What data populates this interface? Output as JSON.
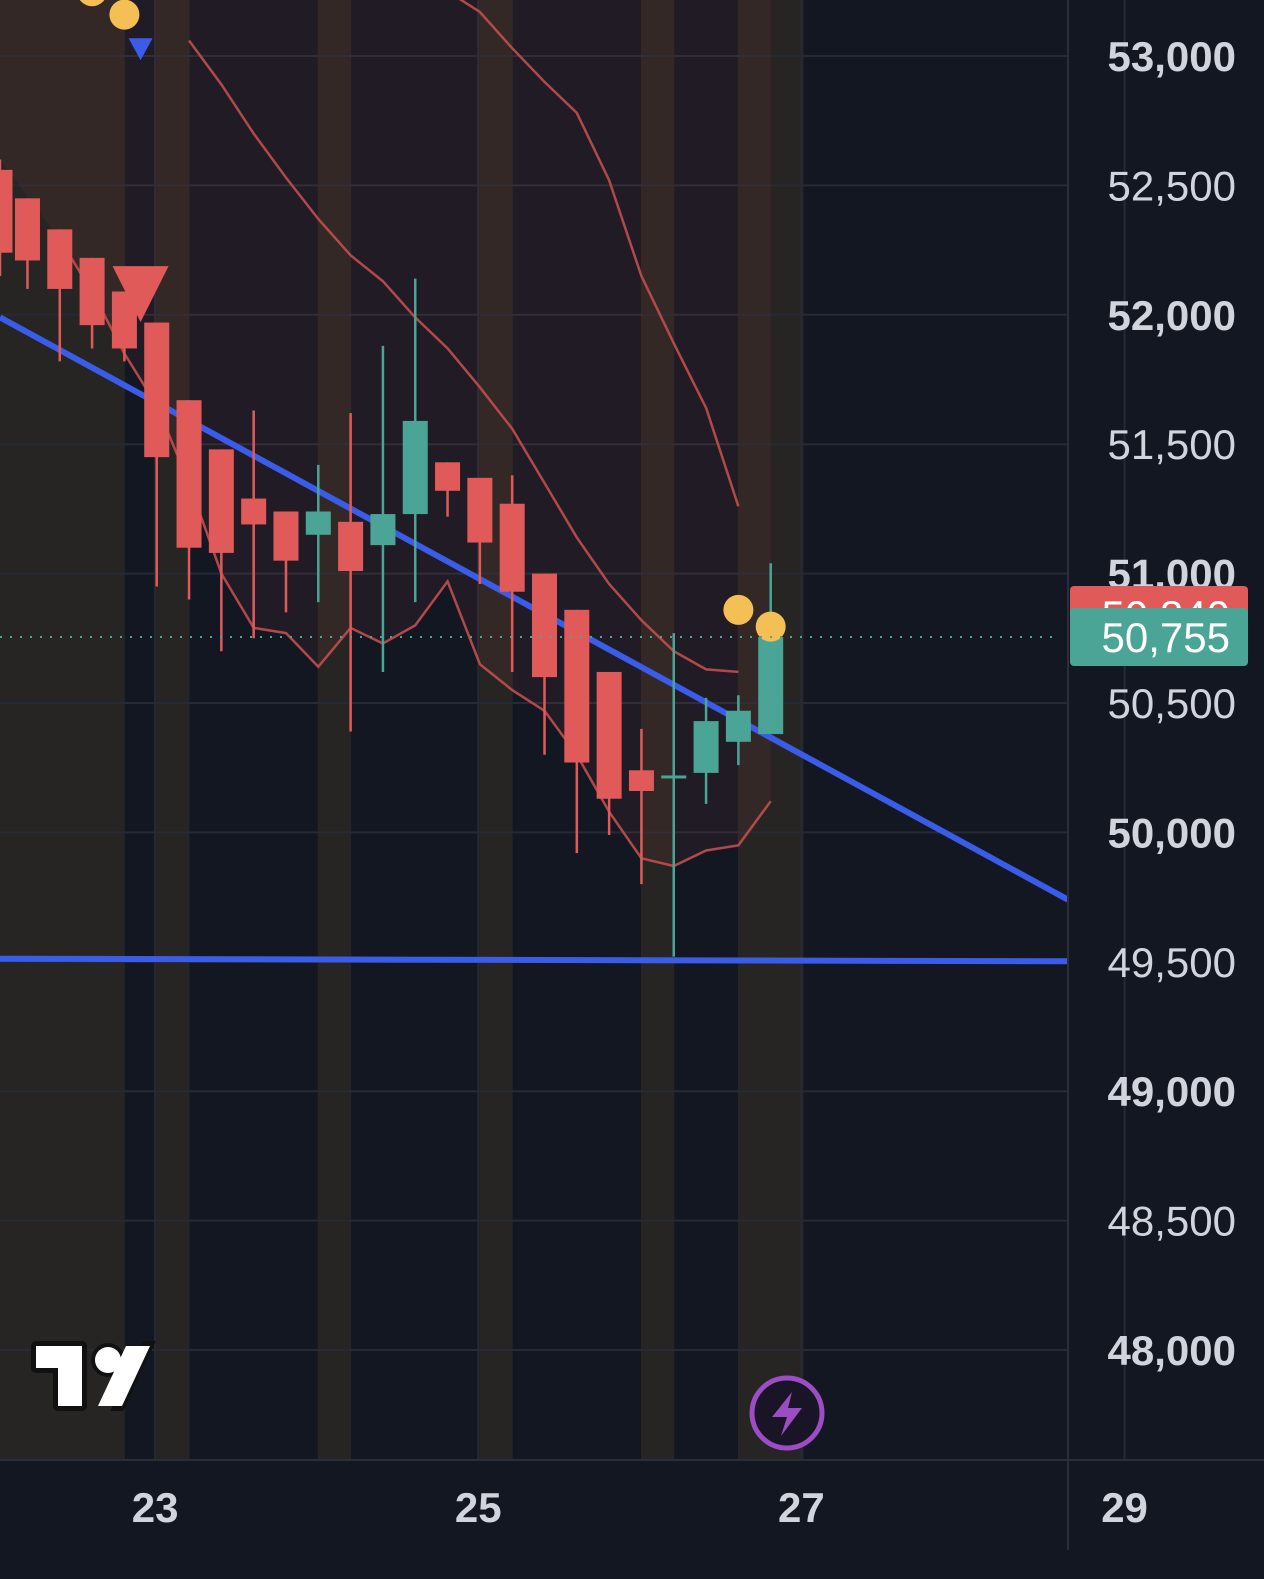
{
  "chart_data": {
    "type": "candlestick",
    "y_axis": {
      "position": "right",
      "ylim": [
        47600,
        53340
      ],
      "ticks": [
        {
          "value": 53000,
          "label": "53,000",
          "bold": true
        },
        {
          "value": 52500,
          "label": "52,500",
          "bold": false
        },
        {
          "value": 52000,
          "label": "52,000",
          "bold": true
        },
        {
          "value": 51500,
          "label": "51,500",
          "bold": false
        },
        {
          "value": 51000,
          "label": "51,000",
          "bold": true
        },
        {
          "value": 50500,
          "label": "50,500",
          "bold": false
        },
        {
          "value": 50000,
          "label": "50,000",
          "bold": true
        },
        {
          "value": 49500,
          "label": "49,500",
          "bold": false
        },
        {
          "value": 49000,
          "label": "49,000",
          "bold": true
        },
        {
          "value": 48500,
          "label": "48,500",
          "bold": false
        },
        {
          "value": 48000,
          "label": "48,000",
          "bold": true
        }
      ]
    },
    "x_axis": {
      "xlim": [
        22.04,
        28.65
      ],
      "ticks": [
        {
          "value": 23,
          "label": "23"
        },
        {
          "value": 25,
          "label": "25"
        },
        {
          "value": 27,
          "label": "27"
        },
        {
          "value": 29,
          "label": "29"
        }
      ]
    },
    "grid": true,
    "candles": [
      {
        "t": 22.04,
        "o": 52560,
        "h": 52600,
        "l": 52150,
        "c": 52240
      },
      {
        "t": 22.21,
        "o": 52450,
        "h": 52450,
        "l": 52100,
        "c": 52210
      },
      {
        "t": 22.41,
        "o": 52330,
        "h": 52330,
        "l": 51820,
        "c": 52100
      },
      {
        "t": 22.61,
        "o": 52220,
        "h": 52220,
        "l": 51870,
        "c": 51960
      },
      {
        "t": 22.81,
        "o": 52090,
        "h": 52090,
        "l": 51820,
        "c": 51870
      },
      {
        "t": 23.01,
        "o": 51970,
        "h": 51970,
        "l": 50950,
        "c": 51450
      },
      {
        "t": 23.21,
        "o": 51670,
        "h": 51670,
        "l": 50900,
        "c": 51100
      },
      {
        "t": 23.41,
        "o": 51480,
        "h": 51480,
        "l": 50700,
        "c": 51080
      },
      {
        "t": 23.61,
        "o": 51290,
        "h": 51630,
        "l": 50750,
        "c": 51190
      },
      {
        "t": 23.81,
        "o": 51240,
        "h": 51240,
        "l": 50850,
        "c": 51050
      },
      {
        "t": 24.01,
        "o": 51150,
        "h": 51420,
        "l": 50890,
        "c": 51240
      },
      {
        "t": 24.21,
        "o": 51200,
        "h": 51620,
        "l": 50390,
        "c": 51010
      },
      {
        "t": 24.41,
        "o": 51110,
        "h": 51880,
        "l": 50620,
        "c": 51230
      },
      {
        "t": 24.61,
        "o": 51230,
        "h": 52140,
        "l": 50890,
        "c": 51590
      },
      {
        "t": 24.81,
        "o": 51430,
        "h": 51430,
        "l": 51220,
        "c": 51320
      },
      {
        "t": 25.01,
        "o": 51370,
        "h": 51370,
        "l": 50960,
        "c": 51120
      },
      {
        "t": 25.21,
        "o": 51270,
        "h": 51380,
        "l": 50620,
        "c": 50930
      },
      {
        "t": 25.41,
        "o": 51000,
        "h": 51000,
        "l": 50300,
        "c": 50600
      },
      {
        "t": 25.61,
        "o": 50860,
        "h": 50860,
        "l": 49920,
        "c": 50270
      },
      {
        "t": 25.81,
        "o": 50620,
        "h": 50620,
        "l": 49990,
        "c": 50130
      },
      {
        "t": 26.01,
        "o": 50240,
        "h": 50400,
        "l": 49800,
        "c": 50160
      },
      {
        "t": 26.21,
        "o": 50210,
        "h": 50770,
        "l": 49520,
        "c": 50220
      },
      {
        "t": 26.41,
        "o": 50230,
        "h": 50520,
        "l": 50110,
        "c": 50430
      },
      {
        "t": 26.61,
        "o": 50350,
        "h": 50530,
        "l": 50260,
        "c": 50470
      },
      {
        "t": 26.81,
        "o": 50380,
        "h": 51040,
        "l": 50380,
        "c": 50755
      }
    ],
    "current_price": 50755,
    "price_labels": [
      {
        "label": "50,840",
        "value": 50840,
        "color": "#E15A5A"
      },
      {
        "label": "50,755",
        "value": 50755,
        "color": "#4BA596"
      }
    ],
    "overlays": {
      "upper_band": {
        "color": "#B84C4C",
        "points": [
          [
            23.21,
            53060
          ],
          [
            23.41,
            52890
          ],
          [
            23.61,
            52700
          ],
          [
            23.81,
            52530
          ],
          [
            24.01,
            52370
          ],
          [
            24.21,
            52230
          ],
          [
            24.41,
            52130
          ],
          [
            24.61,
            51990
          ],
          [
            24.81,
            51870
          ],
          [
            25.01,
            51720
          ],
          [
            25.21,
            51560
          ],
          [
            25.41,
            51350
          ],
          [
            25.61,
            51140
          ],
          [
            25.81,
            50960
          ],
          [
            26.01,
            50820
          ],
          [
            26.21,
            50700
          ],
          [
            26.41,
            50630
          ],
          [
            26.61,
            50620
          ]
        ]
      },
      "upper_band_2": {
        "color": "#B84C4C",
        "points": [
          [
            24.69,
            53340
          ],
          [
            24.81,
            53250
          ],
          [
            25.01,
            53170
          ],
          [
            25.21,
            53030
          ],
          [
            25.41,
            52900
          ],
          [
            25.61,
            52780
          ],
          [
            25.81,
            52520
          ],
          [
            26.01,
            52150
          ],
          [
            26.21,
            51890
          ],
          [
            26.41,
            51640
          ],
          [
            26.61,
            51260
          ]
        ]
      },
      "lower_band": {
        "color": "#B84C4C",
        "points": [
          [
            22.41,
            52290
          ],
          [
            22.61,
            52090
          ],
          [
            22.81,
            51850
          ],
          [
            23.01,
            51650
          ],
          [
            23.21,
            51350
          ],
          [
            23.41,
            51000
          ],
          [
            23.61,
            50790
          ],
          [
            23.81,
            50770
          ],
          [
            24.01,
            50640
          ],
          [
            24.21,
            50790
          ],
          [
            24.41,
            50730
          ],
          [
            24.61,
            50800
          ],
          [
            24.81,
            50970
          ],
          [
            25.01,
            50650
          ],
          [
            25.21,
            50550
          ],
          [
            25.41,
            50470
          ],
          [
            25.61,
            50300
          ],
          [
            25.81,
            50080
          ],
          [
            26.01,
            49900
          ],
          [
            26.21,
            49870
          ],
          [
            26.41,
            49930
          ],
          [
            26.61,
            49950
          ],
          [
            26.81,
            50120
          ]
        ]
      },
      "dots": {
        "color": "#F4C056",
        "points": [
          [
            22.41,
            53280
          ],
          [
            22.61,
            53250
          ],
          [
            22.81,
            53160
          ],
          [
            26.61,
            50860
          ],
          [
            26.81,
            50795
          ]
        ]
      },
      "trendline_diagonal": {
        "color": "#3B5CE8",
        "from": [
          22.04,
          51990
        ],
        "to": [
          28.65,
          49740
        ]
      },
      "trendline_horizontal": {
        "color": "#3B5CE8",
        "from": [
          22.04,
          49512
        ],
        "to": [
          28.65,
          49502
        ]
      },
      "sell_marker": {
        "t": 22.91,
        "value": 52080,
        "color": "#E15A5A"
      },
      "small_marker": {
        "t": 22.91,
        "value": 53030,
        "color": "#3B5CE8"
      },
      "highlight_bands": [
        {
          "from": 22.04,
          "to": 22.81,
          "color": "#2A2723"
        },
        {
          "from": 23.01,
          "to": 23.21,
          "color": "#2A2723"
        },
        {
          "from": 24.01,
          "to": 24.21,
          "color": "#2A2723"
        },
        {
          "from": 25.01,
          "to": 25.21,
          "color": "#2A2723"
        },
        {
          "from": 26.01,
          "to": 26.21,
          "color": "#2A2723"
        },
        {
          "from": 26.61,
          "to": 27.01,
          "color": "#2A2723"
        }
      ]
    },
    "colors": {
      "background": "#131722",
      "up": "#4BA596",
      "down": "#E15A5A",
      "grid": "#262A35",
      "axis_text": "#D1D4DC",
      "axis_border": "#2A2E39"
    }
  },
  "watermark": {
    "name": "tradingview-logo"
  },
  "bottom_button": {
    "icon": "lightning-icon",
    "color": "#9C4CC4"
  }
}
